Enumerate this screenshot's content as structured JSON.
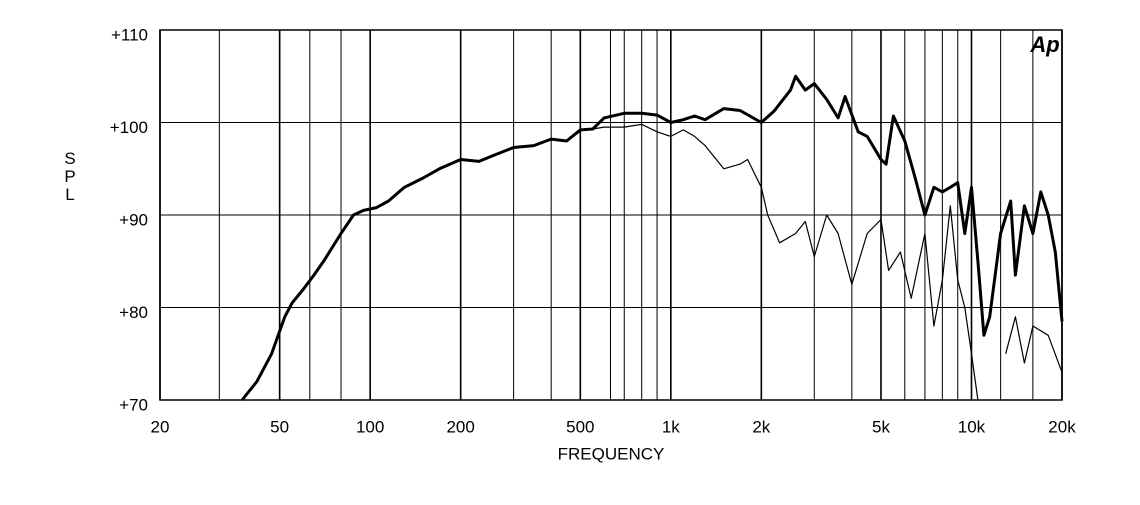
{
  "chart_data": {
    "type": "line",
    "logo": "Ap",
    "ylabel": "SPL",
    "xlabel": "FREQUENCY",
    "xlog": true,
    "xlim": [
      20,
      20000
    ],
    "ylim": [
      70,
      110
    ],
    "xticks": [
      20,
      50,
      100,
      200,
      500,
      {
        "value": 1000,
        "label": "1k"
      },
      {
        "value": 2000,
        "label": "2k"
      },
      {
        "value": 5000,
        "label": "5k"
      },
      {
        "value": 10000,
        "label": "10k"
      },
      {
        "value": 20000,
        "label": "20k"
      }
    ],
    "yticks": [
      {
        "value": 70,
        "label": "+70"
      },
      {
        "value": 80,
        "label": "+80"
      },
      {
        "value": 90,
        "label": "+90"
      },
      {
        "value": 100,
        "label": "+100"
      },
      {
        "value": 110,
        "label": "+110"
      }
    ],
    "xgrid": [
      31.5,
      50,
      63,
      80,
      100,
      200,
      300,
      400,
      500,
      630,
      700,
      800,
      900,
      1000,
      2000,
      3000,
      4000,
      5000,
      6000,
      7000,
      8000,
      9000,
      10000,
      12500,
      16000
    ],
    "grid": true,
    "series": [
      {
        "color": "#000000",
        "width": 3,
        "x": [
          37.5,
          42,
          47,
          52,
          55,
          60,
          65,
          70,
          80,
          88,
          95,
          105,
          115,
          130,
          150,
          170,
          200,
          230,
          260,
          300,
          350,
          400,
          450,
          500,
          550,
          600,
          700,
          800,
          900,
          1000,
          1100,
          1200,
          1300,
          1500,
          1700,
          2000,
          2200,
          2500,
          2600,
          2800,
          3000,
          3300,
          3600,
          3800,
          4200,
          4500,
          5000,
          5200,
          5500,
          6000,
          6500,
          7000,
          7500,
          8000,
          8500,
          9000,
          9500,
          10000,
          10500,
          11000,
          11500,
          12500,
          13500,
          14000,
          15000,
          16000,
          17000,
          18000,
          19000,
          20000
        ],
        "values": [
          70,
          72,
          75,
          79,
          80.5,
          82,
          83.5,
          85,
          88,
          90,
          90.5,
          90.8,
          91.5,
          93,
          94,
          95,
          96,
          95.8,
          96.5,
          97.3,
          97.5,
          98.2,
          98,
          99.2,
          99.3,
          100.5,
          101,
          101,
          100.8,
          100,
          100.3,
          100.7,
          100.3,
          101.5,
          101.3,
          100,
          101.2,
          103.5,
          105,
          103.5,
          104.2,
          102.5,
          100.5,
          102.8,
          99,
          98.5,
          96,
          95.5,
          100.7,
          98,
          94,
          90,
          93,
          92.5,
          93,
          93.5,
          88,
          93,
          85,
          77,
          79,
          88,
          91.5,
          83.5,
          91,
          88,
          92.5,
          90,
          86,
          78.5
        ]
      },
      {
        "color": "#000000",
        "width": 1.2,
        "x": [
          500,
          550,
          600,
          700,
          800,
          900,
          1000,
          1100,
          1200,
          1300,
          1500,
          1700,
          1800,
          2000,
          2100,
          2300,
          2600,
          2800,
          3000,
          3300,
          3600,
          4000,
          4500,
          5000,
          5300,
          5800,
          6300,
          7000,
          7500,
          8000,
          8500,
          9000,
          9500,
          10000,
          10500,
          12000,
          13000,
          14000,
          15000,
          16000,
          18000,
          20000
        ],
        "values": [
          99.2,
          99.3,
          99.5,
          99.5,
          99.8,
          99,
          98.5,
          99.2,
          98.5,
          97.5,
          95,
          95.5,
          96,
          93,
          90,
          87,
          88,
          89.3,
          85.5,
          90,
          88,
          82.5,
          88,
          89.5,
          84,
          86,
          81,
          88,
          78,
          83,
          91,
          83,
          80,
          75,
          70,
          null,
          75,
          79,
          74,
          78,
          77,
          73
        ]
      }
    ]
  }
}
